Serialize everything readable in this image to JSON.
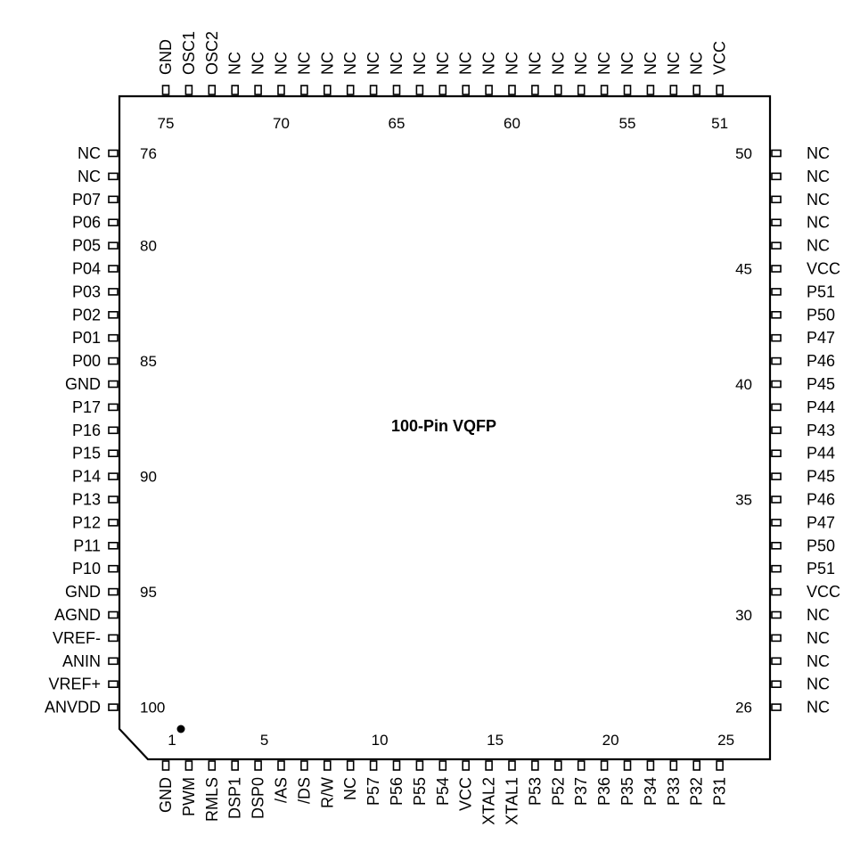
{
  "package": {
    "title": "100-Pin VQFP",
    "pin1_marker": "pin-1-dot"
  },
  "pins": {
    "bottom": [
      "GND",
      "PWM",
      "RMLS",
      "DSP1",
      "DSP0",
      "/AS",
      "/DS",
      "R/W",
      "NC",
      "P57",
      "P56",
      "P55",
      "P54",
      "VCC",
      "XTAL2",
      "XTAL1",
      "P53",
      "P52",
      "P37",
      "P36",
      "P35",
      "P34",
      "P33",
      "P32",
      "P31"
    ],
    "right": [
      "NC",
      "NC",
      "NC",
      "NC",
      "NC",
      "VCC",
      "P51",
      "P50",
      "P47",
      "P46",
      "P45",
      "P44",
      "P43",
      "P44",
      "P45",
      "P46",
      "P47",
      "P50",
      "P51",
      "VCC",
      "NC",
      "NC",
      "NC",
      "NC",
      "NC"
    ],
    "top": [
      "VCC",
      "NC",
      "NC",
      "NC",
      "NC",
      "NC",
      "NC",
      "NC",
      "NC",
      "NC",
      "NC",
      "NC",
      "NC",
      "NC",
      "NC",
      "NC",
      "NC",
      "NC",
      "NC",
      "NC",
      "NC",
      "NC",
      "OSC2",
      "OSC1",
      "GND"
    ],
    "left": [
      "NC",
      "NC",
      "P07",
      "P06",
      "P05",
      "P04",
      "P03",
      "P02",
      "P01",
      "P00",
      "GND",
      "P17",
      "P16",
      "P15",
      "P14",
      "P13",
      "P12",
      "P11",
      "P10",
      "GND",
      "AGND",
      "VREF-",
      "ANIN",
      "VREF+",
      "ANVDD"
    ]
  },
  "pin_numbers": {
    "bottom": [
      "1",
      "5",
      "10",
      "15",
      "20",
      "25"
    ],
    "right": [
      "26",
      "30",
      "35",
      "40",
      "45",
      "50"
    ],
    "top": [
      "51",
      "55",
      "60",
      "65",
      "70",
      "75"
    ],
    "left": [
      "76",
      "80",
      "85",
      "90",
      "95",
      "100"
    ]
  }
}
